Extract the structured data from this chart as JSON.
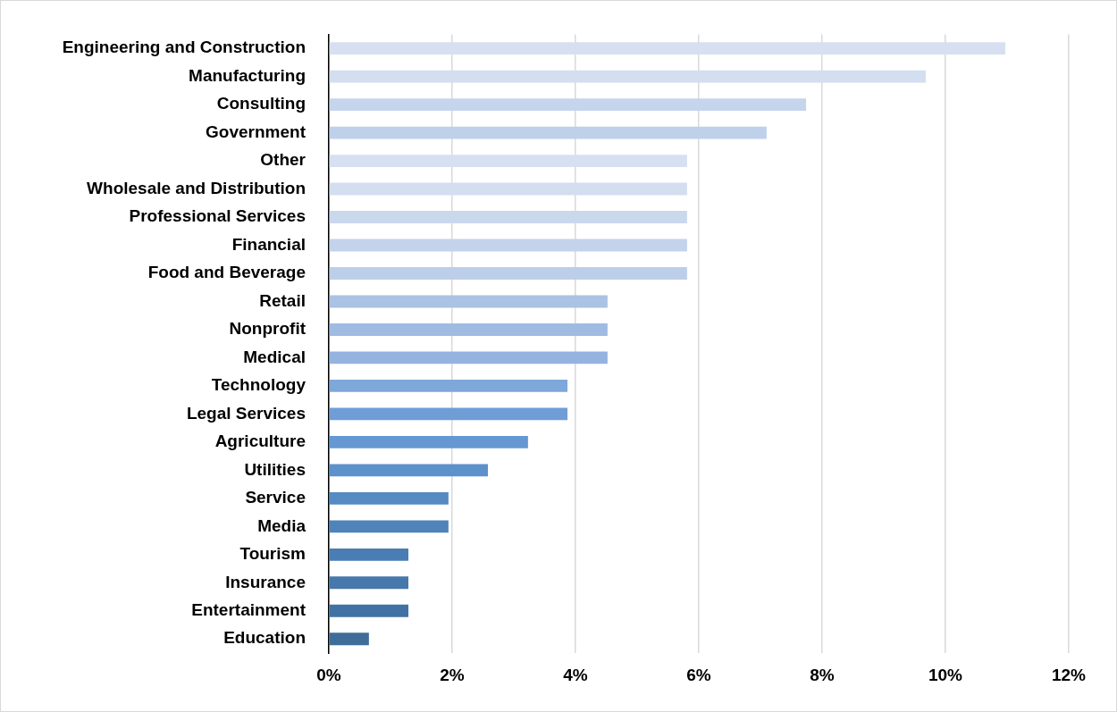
{
  "chart_data": {
    "type": "bar",
    "orientation": "horizontal",
    "categories": [
      "Engineering and Construction",
      "Manufacturing",
      "Consulting",
      "Government",
      "Other",
      "Wholesale and Distribution",
      "Professional Services",
      "Financial",
      "Food and Beverage",
      "Retail",
      "Nonprofit",
      "Medical",
      "Technology",
      "Legal Services",
      "Agriculture",
      "Utilities",
      "Service",
      "Media",
      "Tourism",
      "Insurance",
      "Entertainment",
      "Education"
    ],
    "values": [
      10.97,
      9.68,
      7.74,
      7.1,
      5.81,
      5.81,
      5.81,
      5.81,
      5.81,
      4.52,
      4.52,
      4.52,
      3.87,
      3.87,
      3.23,
      2.58,
      1.94,
      1.94,
      1.29,
      1.29,
      1.29,
      0.65
    ],
    "colors": [
      "#d6e0f0",
      "#d3def0",
      "#c6d5ec",
      "#bfd0ea",
      "#d6e0f0",
      "#d3def0",
      "#cad8ed",
      "#c3d3eb",
      "#bccee9",
      "#aac2e4",
      "#9fbbe2",
      "#94b4df",
      "#7ea7da",
      "#6f9dd6",
      "#6597d2",
      "#5d91cb",
      "#568ac2",
      "#4f83ba",
      "#4a7db3",
      "#4678ab",
      "#4272a3",
      "#3f6c99"
    ],
    "xlim": [
      0,
      12
    ],
    "xticks": [
      {
        "value": 0,
        "label": "0%"
      },
      {
        "value": 2,
        "label": "2%"
      },
      {
        "value": 4,
        "label": "4%"
      },
      {
        "value": 6,
        "label": "6%"
      },
      {
        "value": 8,
        "label": "8%"
      },
      {
        "value": 10,
        "label": "10%"
      },
      {
        "value": 12,
        "label": "12%"
      }
    ],
    "grid": "x"
  }
}
